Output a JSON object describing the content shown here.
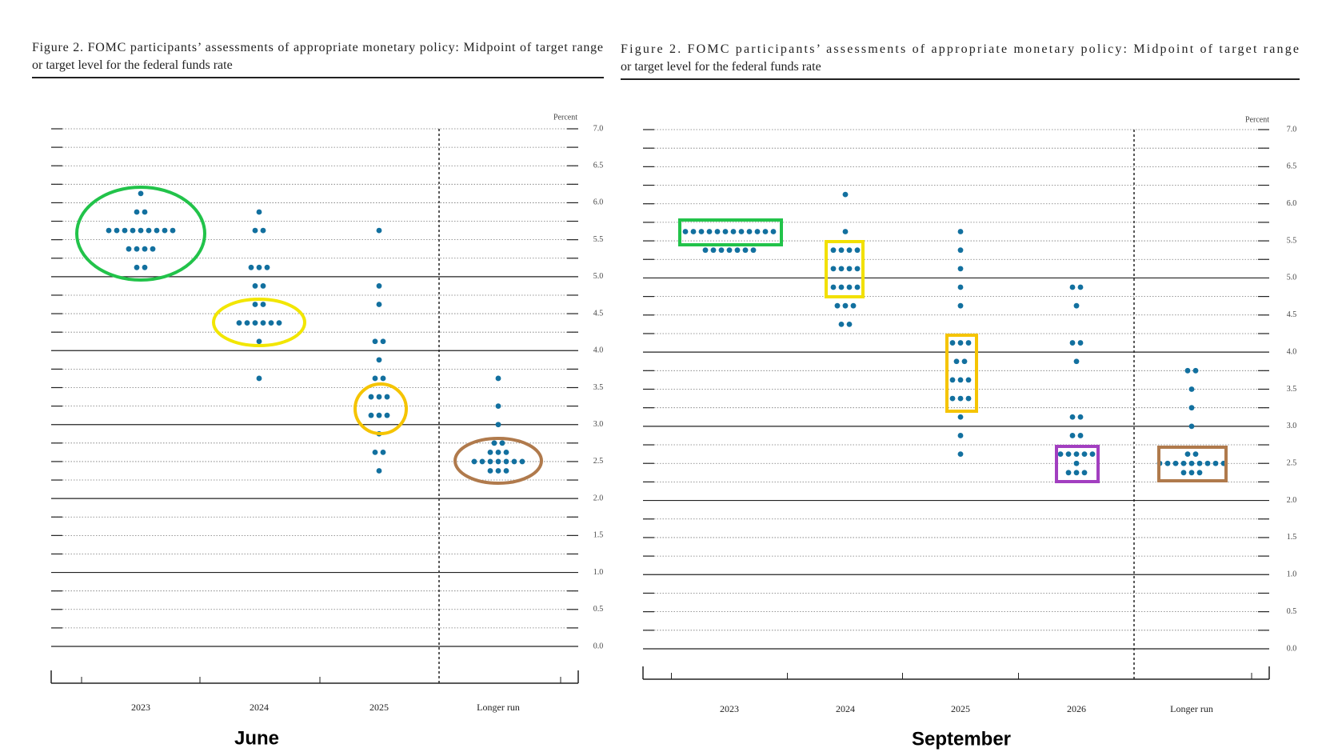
{
  "chart_data": [
    {
      "type": "dot",
      "label": "June",
      "title": [
        "Figure 2.  FOMC participants’ assessments of appropriate monetary policy:  Midpoint of target range",
        "or target level for the federal funds rate"
      ],
      "ylabel": "Percent",
      "color": "#12709f",
      "categories": [
        "2023",
        "2024",
        "2025",
        "Longer run"
      ],
      "values": [
        [
          6.125,
          5.875,
          5.875,
          5.625,
          5.625,
          5.625,
          5.625,
          5.625,
          5.625,
          5.625,
          5.625,
          5.625,
          5.375,
          5.375,
          5.375,
          5.375,
          5.125,
          5.125
        ],
        [
          5.875,
          5.625,
          5.625,
          5.125,
          5.125,
          5.125,
          4.875,
          4.875,
          4.625,
          4.625,
          4.375,
          4.375,
          4.375,
          4.375,
          4.375,
          4.375,
          4.125,
          3.625
        ],
        [
          5.625,
          4.875,
          4.625,
          4.125,
          4.125,
          3.875,
          3.625,
          3.625,
          3.375,
          3.375,
          3.375,
          3.125,
          3.125,
          3.125,
          2.875,
          2.625,
          2.625,
          2.375
        ],
        [
          3.625,
          3.25,
          3.0,
          2.75,
          2.75,
          2.625,
          2.625,
          2.625,
          2.5,
          2.5,
          2.5,
          2.5,
          2.5,
          2.5,
          2.5,
          2.375,
          2.375,
          2.375
        ]
      ],
      "ylim": [
        0,
        7
      ],
      "yticks": [
        {
          "value": 0,
          "label": "0.0"
        },
        0.5,
        {
          "value": 1,
          "label": "1.0"
        },
        1.5,
        {
          "value": 2,
          "label": "2.0"
        },
        2.5,
        {
          "value": 3,
          "label": "3.0"
        },
        3.5,
        {
          "value": 4,
          "label": "4.0"
        },
        4.5,
        {
          "value": 5,
          "label": "5.0"
        },
        5.5,
        {
          "value": 6,
          "label": "6.0"
        },
        6.5,
        {
          "value": 7,
          "label": "7.0"
        }
      ]
    },
    {
      "type": "dot",
      "label": "September",
      "title": [
        "Figure 2.  FOMC participants’ assessments of appropriate monetary policy:  Midpoint of target range",
        "or target level for the federal funds rate"
      ],
      "ylabel": "Percent",
      "color": "#12709f",
      "categories": [
        "2023",
        "2024",
        "2025",
        "2026",
        "Longer run"
      ],
      "values": [
        [
          5.625,
          5.625,
          5.625,
          5.625,
          5.625,
          5.625,
          5.625,
          5.625,
          5.625,
          5.625,
          5.625,
          5.625,
          5.375,
          5.375,
          5.375,
          5.375,
          5.375,
          5.375,
          5.375
        ],
        [
          6.125,
          5.625,
          5.375,
          5.375,
          5.375,
          5.375,
          5.125,
          5.125,
          5.125,
          5.125,
          4.875,
          4.875,
          4.875,
          4.875,
          4.625,
          4.625,
          4.625,
          4.375,
          4.375
        ],
        [
          5.625,
          5.375,
          5.125,
          4.875,
          4.625,
          4.125,
          4.125,
          4.125,
          3.875,
          3.875,
          3.625,
          3.625,
          3.625,
          3.375,
          3.375,
          3.375,
          3.125,
          2.875,
          2.625
        ],
        [
          4.875,
          4.875,
          4.625,
          4.125,
          4.125,
          3.875,
          3.125,
          3.125,
          2.875,
          2.875,
          2.625,
          2.625,
          2.625,
          2.625,
          2.625,
          2.5,
          2.375,
          2.375,
          2.375
        ],
        [
          3.75,
          3.75,
          3.5,
          3.25,
          3.0,
          2.625,
          2.625,
          2.5,
          2.5,
          2.5,
          2.5,
          2.5,
          2.5,
          2.5,
          2.5,
          2.5,
          2.375,
          2.375,
          2.375
        ]
      ],
      "ylim": [
        0,
        7
      ],
      "yticks": [
        {
          "value": 0,
          "label": "0.0"
        },
        0.5,
        {
          "value": 1,
          "label": "1.0"
        },
        1.5,
        {
          "value": 2,
          "label": "2.0"
        },
        2.5,
        {
          "value": 3,
          "label": "3.0"
        },
        3.5,
        {
          "value": 4,
          "label": "4.0"
        },
        4.5,
        {
          "value": 5,
          "label": "5.0"
        },
        5.5,
        {
          "value": 6,
          "label": "6.0"
        },
        6.5,
        {
          "value": 7,
          "label": "7.0"
        }
      ]
    }
  ]
}
